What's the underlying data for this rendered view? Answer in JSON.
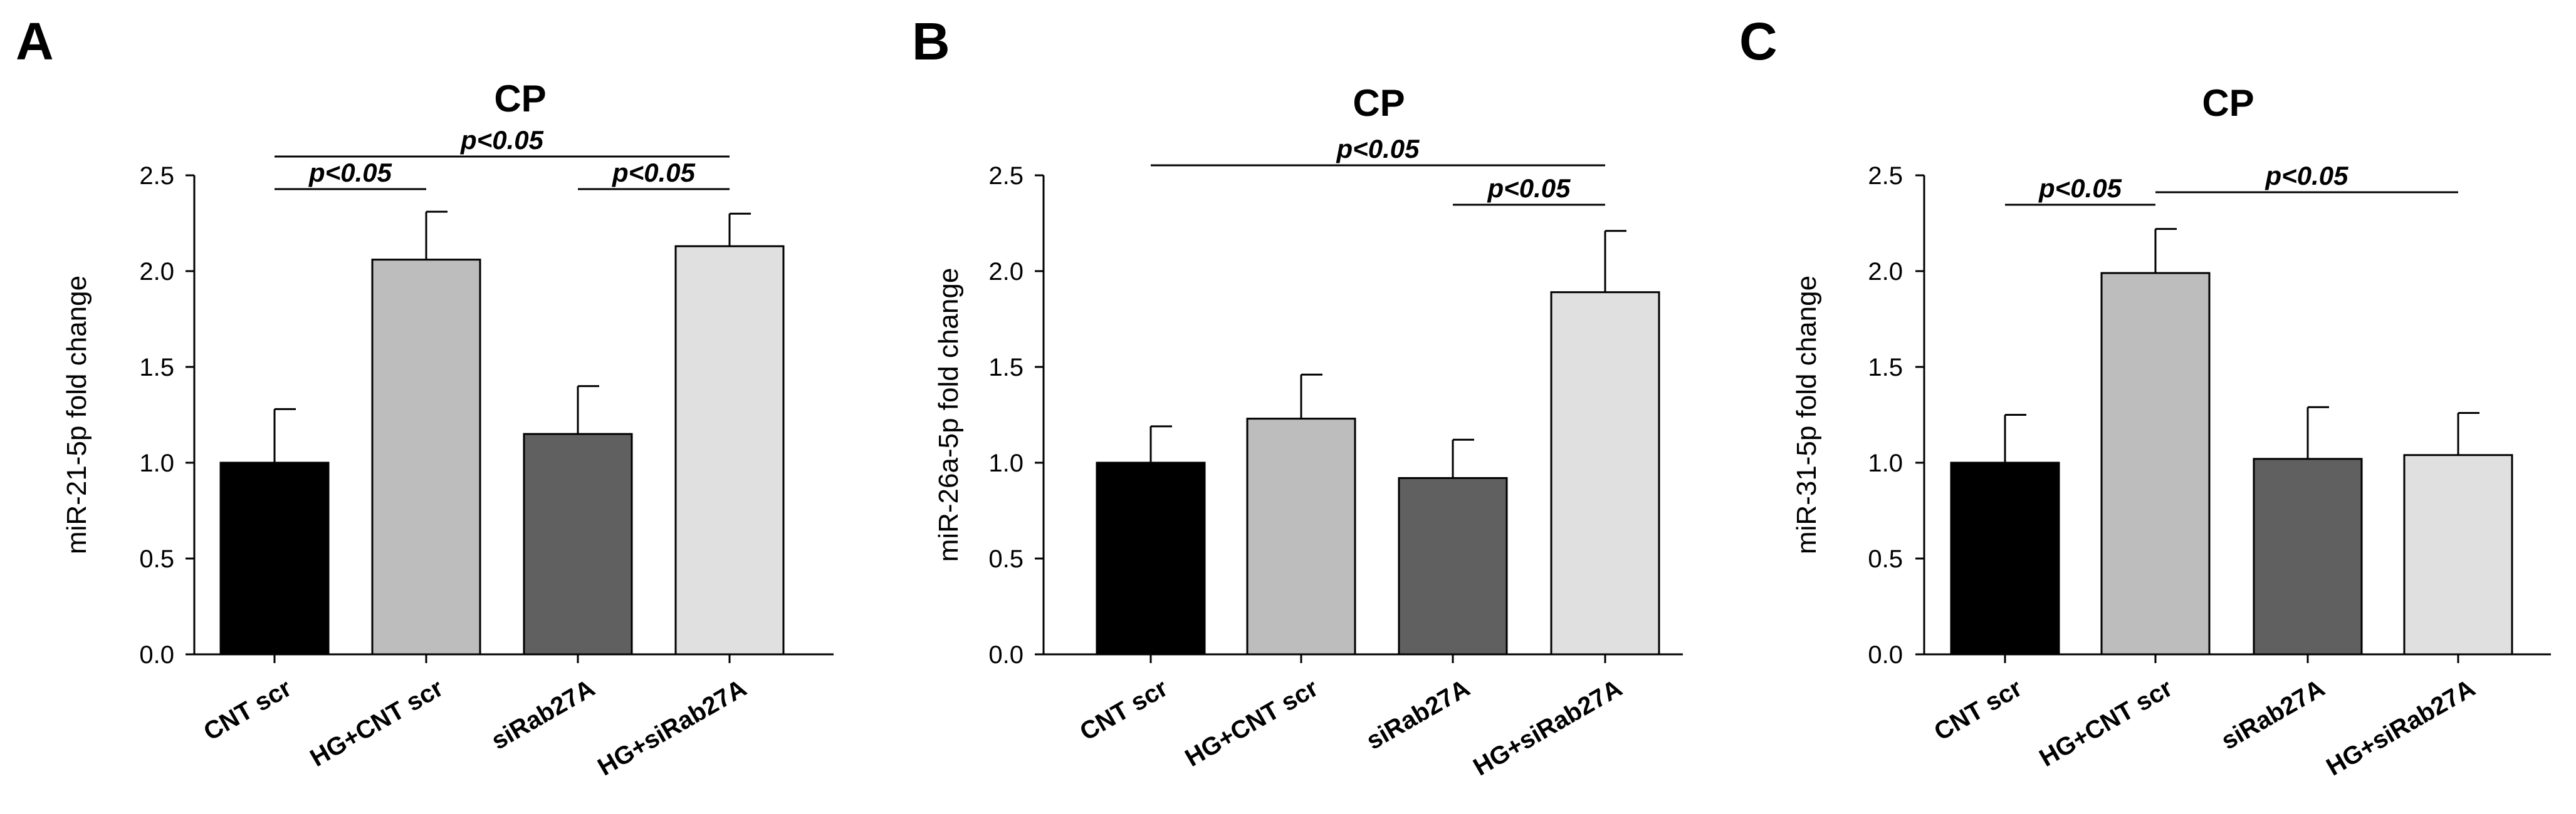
{
  "chart_data": [
    {
      "panel": "A",
      "type": "bar",
      "title": "CP",
      "xlabel": "",
      "ylabel": "miR-21-5p fold change",
      "ylim": [
        0,
        2.5
      ],
      "yticks": [
        "0.0",
        "0.5",
        "1.0",
        "1.5",
        "2.0",
        "2.5"
      ],
      "categories": [
        "CNT scr",
        "HG+CNT scr",
        "siRab27A",
        "HG+siRab27A"
      ],
      "values": [
        1.0,
        2.06,
        1.15,
        2.13
      ],
      "errors": [
        0.28,
        0.25,
        0.25,
        0.17
      ],
      "colors": [
        "#000000",
        "#bdbdbd",
        "#606060",
        "#e0e0e0"
      ],
      "significance": [
        {
          "from": 0,
          "to": 3,
          "label": "p<0.05",
          "level": 2
        },
        {
          "from": 0,
          "to": 1,
          "label": "p<0.05",
          "level": 1
        },
        {
          "from": 2,
          "to": 3,
          "label": "p<0.05",
          "level": 1
        }
      ]
    },
    {
      "panel": "B",
      "type": "bar",
      "title": "CP",
      "xlabel": "",
      "ylabel": "miR-26a-5p fold change",
      "ylim": [
        0,
        2.5
      ],
      "yticks": [
        "0.0",
        "0.5",
        "1.0",
        "1.5",
        "2.0",
        "2.5"
      ],
      "categories": [
        "CNT scr",
        "HG+CNT scr",
        "siRab27A",
        "HG+siRab27A"
      ],
      "values": [
        1.0,
        1.23,
        0.92,
        1.89
      ],
      "errors": [
        0.19,
        0.23,
        0.2,
        0.32
      ],
      "colors": [
        "#000000",
        "#bdbdbd",
        "#606060",
        "#e0e0e0"
      ],
      "significance": [
        {
          "from": 0,
          "to": 3,
          "label": "p<0.05",
          "level": 2
        },
        {
          "from": 2,
          "to": 3,
          "label": "p<0.05",
          "level": 1
        }
      ]
    },
    {
      "panel": "C",
      "type": "bar",
      "title": "CP",
      "xlabel": "",
      "ylabel": "miR-31-5p fold change",
      "ylim": [
        0,
        2.5
      ],
      "yticks": [
        "0.0",
        "0.5",
        "1.0",
        "1.5",
        "2.0",
        "2.5"
      ],
      "categories": [
        "CNT scr",
        "HG+CNT scr",
        "siRab27A",
        "HG+siRab27A"
      ],
      "values": [
        1.0,
        1.99,
        1.02,
        1.04
      ],
      "errors": [
        0.25,
        0.23,
        0.27,
        0.22
      ],
      "colors": [
        "#000000",
        "#bdbdbd",
        "#606060",
        "#e0e0e0"
      ],
      "significance": [
        {
          "from": 0,
          "to": 1,
          "label": "p<0.05",
          "level": 1
        },
        {
          "from": 1,
          "to": 3,
          "label": "p<0.05",
          "level": 2
        }
      ]
    }
  ]
}
